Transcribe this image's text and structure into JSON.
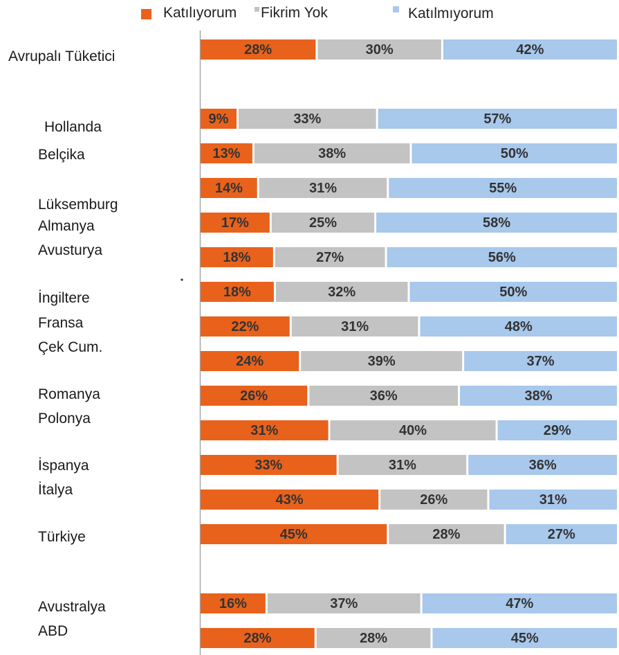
{
  "chart_data": {
    "type": "bar",
    "orientation": "horizontal",
    "stacked": "percent",
    "title": "",
    "xlabel": "",
    "ylabel": "",
    "legend_position": "top",
    "grid": false,
    "series": [
      {
        "name": "Katılıyorum",
        "color": "#e8621c",
        "values": [
          28,
          9,
          13,
          14,
          17,
          18,
          18,
          22,
          24,
          26,
          31,
          33,
          43,
          45,
          16,
          28
        ]
      },
      {
        "name": "Fikrim Yok",
        "color": "#c3c3c3",
        "values": [
          30,
          33,
          38,
          31,
          25,
          27,
          32,
          31,
          39,
          36,
          40,
          31,
          26,
          28,
          37,
          28
        ]
      },
      {
        "name": "Katılmıyorum",
        "color": "#a8c8ec",
        "values": [
          42,
          57,
          50,
          55,
          58,
          56,
          50,
          48,
          37,
          38,
          29,
          36,
          31,
          27,
          47,
          45
        ]
      }
    ],
    "labels": [
      [
        "28%",
        "30%",
        "42%"
      ],
      [
        "9%",
        "33%",
        "57%"
      ],
      [
        "13%",
        "38%",
        "50%"
      ],
      [
        "14%",
        "31%",
        "55%"
      ],
      [
        "17%",
        "25%",
        "58%"
      ],
      [
        "18%",
        "27%",
        "56%"
      ],
      [
        "18%",
        "32%",
        "50%"
      ],
      [
        "22%",
        "31%",
        "48%"
      ],
      [
        "24%",
        "39%",
        "37%"
      ],
      [
        "26%",
        "36%",
        "38%"
      ],
      [
        "31%",
        "40%",
        "29%"
      ],
      [
        "33%",
        "31%",
        "36%"
      ],
      [
        "43%",
        "26%",
        "31%"
      ],
      [
        "45%",
        "28%",
        "27%"
      ],
      [
        "16%",
        "37%",
        "47%"
      ],
      [
        "28%",
        "28%",
        "45%"
      ]
    ],
    "category_labels": [
      "Avrupalı Tüketici",
      "Hollanda",
      "Belçika",
      "Lüksemburg",
      "Almanya",
      "Avusturya",
      "İngiltere",
      "Fransa",
      "Çek Cum.",
      "Romanya",
      "Polonya",
      "İspanya",
      "İtalya",
      "Türkiye",
      "Avustralya",
      "ABD"
    ]
  }
}
